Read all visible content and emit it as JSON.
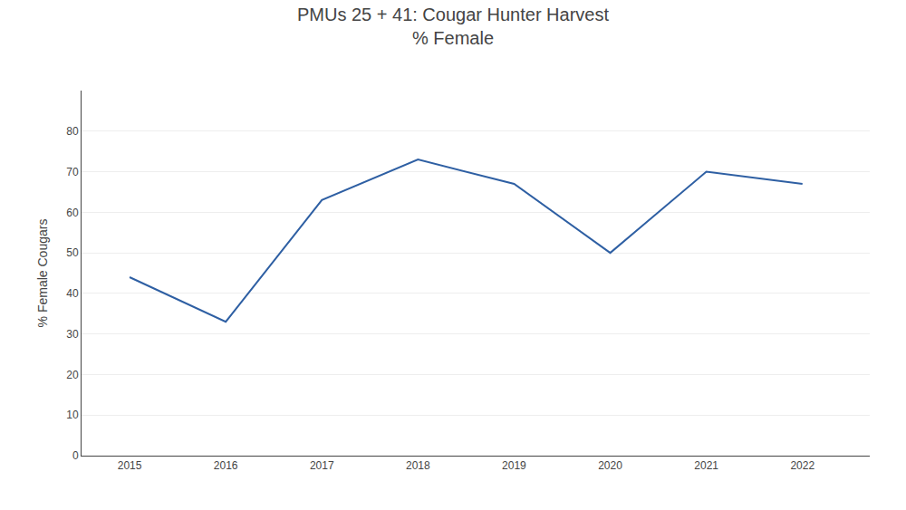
{
  "chart_data": {
    "type": "line",
    "title": "PMUs 25 + 41: Cougar Hunter Harvest",
    "subtitle": "% Female",
    "ylabel": "% Female Cougars",
    "x": [
      2015,
      2016,
      2017,
      2018,
      2019,
      2020,
      2021,
      2022
    ],
    "values": [
      44,
      33,
      63,
      73,
      67,
      50,
      70,
      67
    ],
    "color": "#2e5fa3",
    "xlim": [
      2014.5,
      2022.7
    ],
    "xticks": [
      2015,
      2016,
      2017,
      2018,
      2019,
      2020,
      2021,
      2022
    ],
    "ylim": [
      0,
      90
    ],
    "yticks": [
      0,
      10,
      20,
      30,
      40,
      50,
      60,
      70,
      80
    ],
    "grid": true
  }
}
